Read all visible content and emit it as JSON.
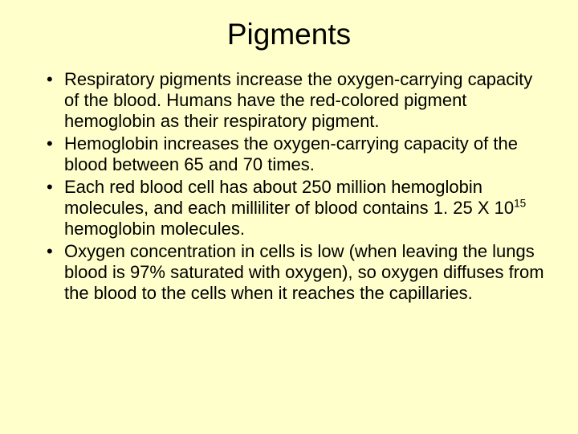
{
  "slide": {
    "title": "Pigments",
    "background_color": "#ffffcc",
    "text_color": "#000000",
    "title_fontsize": 37,
    "body_fontsize": 22,
    "bullets": [
      {
        "text": "Respiratory pigments increase the oxygen-carrying capacity of the blood. Humans have the red-colored pigment hemoglobin as their respiratory pigment."
      },
      {
        "text": "Hemoglobin increases the oxygen-carrying capacity of the blood between 65 and 70 times."
      },
      {
        "text_html": "Each red blood cell has about 250 million hemoglobin molecules, and each milliliter of blood contains 1. 25 X 10<sup>15</sup> hemoglobin molecules."
      },
      {
        "text": "Oxygen concentration in cells is low (when leaving the lungs blood is 97% saturated with oxygen), so oxygen diffuses from the blood to the cells when it reaches the capillaries."
      }
    ]
  }
}
